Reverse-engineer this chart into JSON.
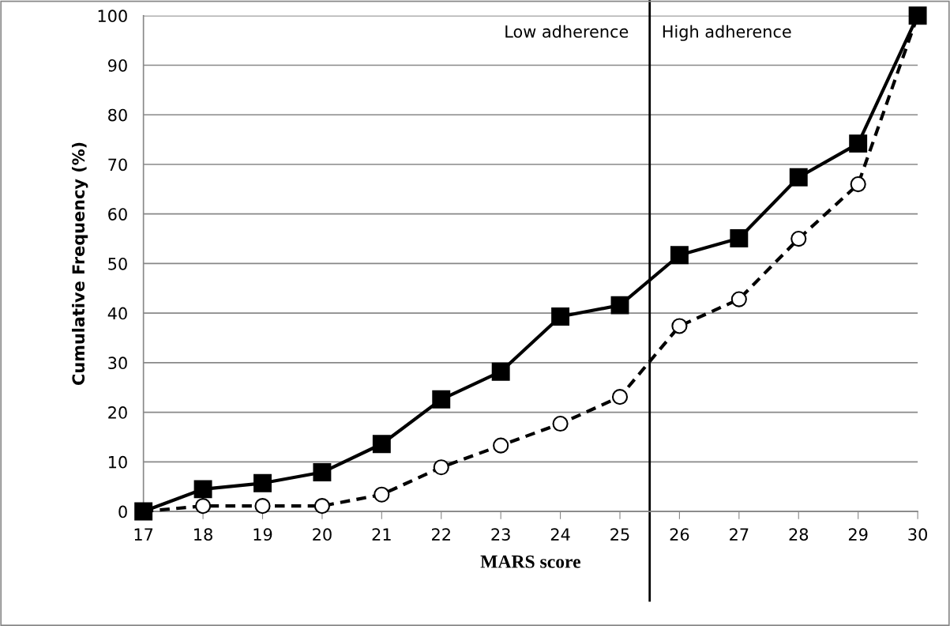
{
  "chart_data": {
    "type": "line",
    "xlabel": "MARS score",
    "ylabel": "Cumulative Frequency (%)",
    "x": [
      17,
      18,
      19,
      20,
      21,
      22,
      23,
      24,
      25,
      26,
      27,
      28,
      29,
      30
    ],
    "xlim": [
      17,
      30
    ],
    "xticks": [
      17,
      18,
      19,
      20,
      21,
      22,
      23,
      24,
      25,
      26,
      27,
      28,
      29,
      30
    ],
    "ylim": [
      0,
      100
    ],
    "yticks": [
      0,
      10,
      20,
      30,
      40,
      50,
      60,
      70,
      80,
      90,
      100
    ],
    "grid": "y",
    "series": [
      {
        "color": "#000000",
        "marker": "square",
        "line_style": "solid",
        "values": [
          0,
          4.5,
          5.7,
          7.9,
          13.6,
          22.6,
          28.2,
          39.3,
          41.6,
          51.7,
          55.1,
          67.4,
          74.2,
          100
        ]
      },
      {
        "color": "#000000",
        "marker": "circle",
        "line_style": "dashed",
        "values": [
          0,
          1.1,
          1.1,
          1.1,
          3.4,
          8.9,
          13.3,
          17.7,
          23.1,
          37.4,
          42.8,
          55.0,
          66.0,
          100
        ]
      }
    ],
    "ref_lines": [
      {
        "axis": "x",
        "value": 25.5,
        "color": "#000000",
        "line_style": "solid"
      }
    ],
    "annotations": [
      "Low adherence",
      "High adherence"
    ]
  }
}
